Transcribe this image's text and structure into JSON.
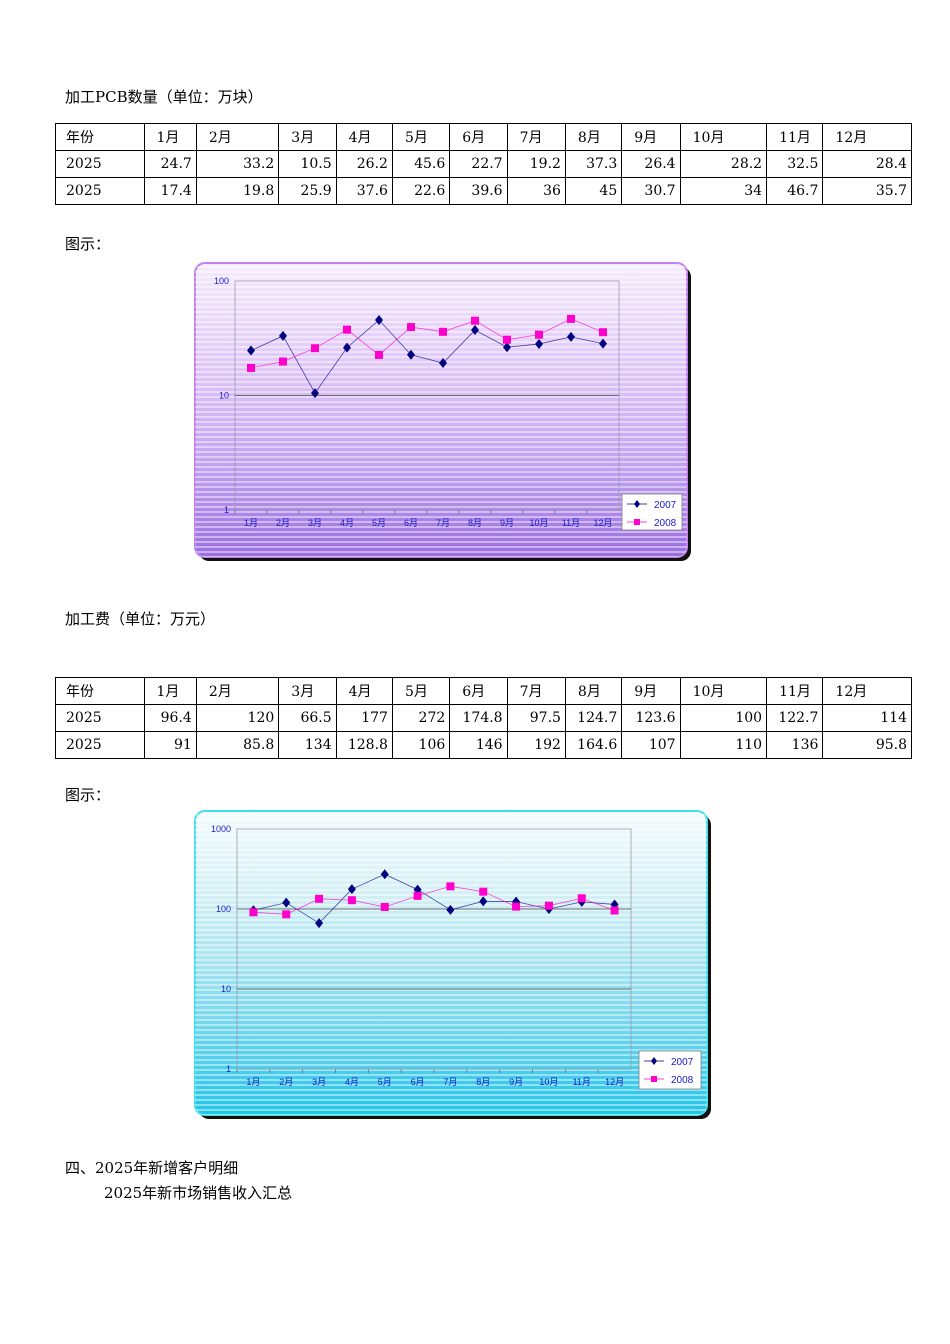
{
  "section1": {
    "title": "加工PCB数量（单位：万块）",
    "table": {
      "header": [
        "年份",
        "1月",
        "2月",
        "3月",
        "4月",
        "5月",
        "6月",
        "7月",
        "8月",
        "9月",
        "10月",
        "11月",
        "12月"
      ],
      "rows": [
        [
          "2025",
          "24.7",
          "33.2",
          "10.5",
          "26.2",
          "45.6",
          "22.7",
          "19.2",
          "37.3",
          "26.4",
          "28.2",
          "32.5",
          "28.4"
        ],
        [
          "2025",
          "17.4",
          "19.8",
          "25.9",
          "37.6",
          "22.6",
          "39.6",
          "36",
          "45",
          "30.7",
          "34",
          "46.7",
          "35.7"
        ]
      ]
    },
    "figure_label": "图示："
  },
  "section2": {
    "title": "加工费（单位：万元）",
    "table": {
      "header": [
        "年份",
        "1月",
        "2月",
        "3月",
        "4月",
        "5月",
        "6月",
        "7月",
        "8月",
        "9月",
        "10月",
        "11月",
        "12月"
      ],
      "rows": [
        [
          "2025",
          "96.4",
          "120",
          "66.5",
          "177",
          "272",
          "174.8",
          "97.5",
          "124.7",
          "123.6",
          "100",
          "122.7",
          "114"
        ],
        [
          "2025",
          "91",
          "85.8",
          "134",
          "128.8",
          "106",
          "146",
          "192",
          "164.6",
          "107",
          "110",
          "136",
          "95.8"
        ]
      ]
    },
    "figure_label": "图示："
  },
  "section4": {
    "title": "四、2025年新增客户明细",
    "subtitle": "2025年新市场销售收入汇总"
  },
  "colors": {
    "series_2007": "#000080",
    "series_2008": "#ff00cc",
    "chart1_border": "#c080f0",
    "chart2_border": "#40e0f0"
  },
  "chart_data": [
    {
      "type": "line",
      "scale": "log",
      "categories": [
        "1月",
        "2月",
        "3月",
        "4月",
        "5月",
        "6月",
        "7月",
        "8月",
        "9月",
        "10月",
        "11月",
        "12月"
      ],
      "series": [
        {
          "name": "2007",
          "marker": "diamond",
          "values": [
            24.7,
            33.2,
            10.5,
            26.2,
            45.6,
            22.7,
            19.2,
            37.3,
            26.4,
            28.2,
            32.5,
            28.4
          ]
        },
        {
          "name": "2008",
          "marker": "square",
          "values": [
            17.4,
            19.8,
            25.9,
            37.6,
            22.6,
            39.6,
            36,
            45,
            30.7,
            34,
            46.7,
            35.7
          ]
        }
      ],
      "yticks": [
        "1",
        "10",
        "100"
      ],
      "ylim": [
        1,
        100
      ],
      "grid": true,
      "legend": "bottom-right"
    },
    {
      "type": "line",
      "scale": "log",
      "categories": [
        "1月",
        "2月",
        "3月",
        "4月",
        "5月",
        "6月",
        "7月",
        "8月",
        "9月",
        "10月",
        "11月",
        "12月"
      ],
      "series": [
        {
          "name": "2007",
          "marker": "diamond",
          "values": [
            96.4,
            120,
            66.5,
            177,
            272,
            174.8,
            97.5,
            124.7,
            123.6,
            100,
            122.7,
            114
          ]
        },
        {
          "name": "2008",
          "marker": "square",
          "values": [
            91,
            85.8,
            134,
            128.8,
            106,
            146,
            192,
            164.6,
            107,
            110,
            136,
            95.8
          ]
        }
      ],
      "yticks": [
        "1",
        "10",
        "100",
        "1000"
      ],
      "ylim": [
        1,
        1000
      ],
      "grid": true,
      "legend": "bottom-right"
    }
  ]
}
